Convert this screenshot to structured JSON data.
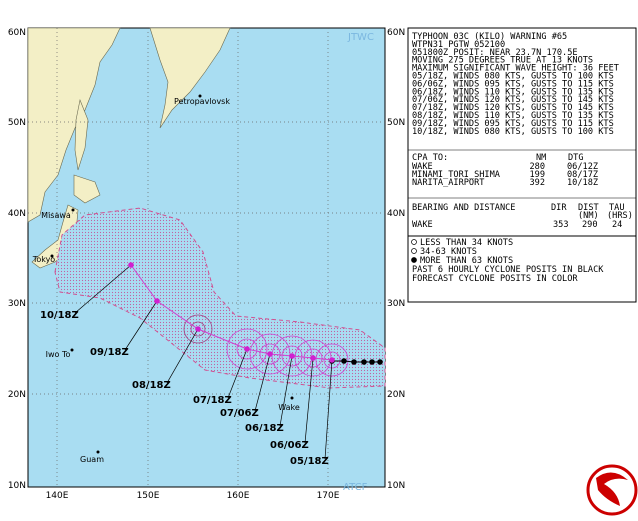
{
  "header": {
    "lines": [
      "TYPHOON 03C (KILO) WARNING #65",
      "WTPN31 PGTW 052100",
      "051800Z POSIT: NEAR 23.7N 170.5E",
      "MOVING 275 DEGREES TRUE AT 13 KNOTS",
      "MAXIMUM SIGNIFICANT WAVE HEIGHT: 36 FEET",
      "05/18Z, WINDS 080 KTS, GUSTS TO 100 KTS",
      "06/06Z, WINDS 095 KTS, GUSTS TO 115 KTS",
      "06/18Z, WINDS 110 KTS, GUSTS TO 135 KTS",
      "07/06Z, WINDS 120 KTS, GUSTS TO 145 KTS",
      "07/18Z, WINDS 120 KTS, GUSTS TO 145 KTS",
      "08/18Z, WINDS 110 KTS, GUSTS TO 135 KTS",
      "09/18Z, WINDS 095 KTS, GUSTS TO 115 KTS",
      "10/18Z, WINDS 080 KTS, GUSTS TO 100 KTS"
    ]
  },
  "cpa": {
    "title": "CPA TO:",
    "columns": [
      "NM",
      "DTG"
    ],
    "rows": [
      [
        "WAKE",
        "280",
        "06/12Z"
      ],
      [
        "MINAMI_TORI_SHIMA",
        "199",
        "08/17Z"
      ],
      [
        "NARITA_AIRPORT",
        "392",
        "10/18Z"
      ]
    ]
  },
  "bearing": {
    "title": "BEARING AND DISTANCE",
    "columns": [
      "DIR",
      "DIST",
      "TAU"
    ],
    "units": [
      "(NM)",
      "(HRS)"
    ],
    "rows": [
      [
        "WAKE",
        "353",
        "290",
        "24"
      ]
    ]
  },
  "legend": {
    "items": [
      "LESS THAN 34 KNOTS",
      "34-63 KNOTS",
      "MORE THAN 63 KNOTS"
    ],
    "notes": [
      "PAST 6 HOURLY CYCLONE POSITS IN BLACK",
      "FORECAST CYCLONE POSITS IN COLOR"
    ]
  },
  "map": {
    "lat_labels": [
      "60N",
      "50N",
      "40N",
      "30N",
      "20N",
      "10N"
    ],
    "lon_labels": [
      "140E",
      "150E",
      "160E",
      "170E"
    ],
    "places": [
      "Petropavlovsk",
      "Misawa",
      "Tokyo",
      "Iwo To",
      "Wake",
      "Guam"
    ],
    "forecast_labels": [
      "10/18Z",
      "09/18Z",
      "08/18Z",
      "07/18Z",
      "07/06Z",
      "06/18Z",
      "06/06Z",
      "05/18Z"
    ],
    "credits": [
      "JTWC",
      "ATCF"
    ]
  }
}
